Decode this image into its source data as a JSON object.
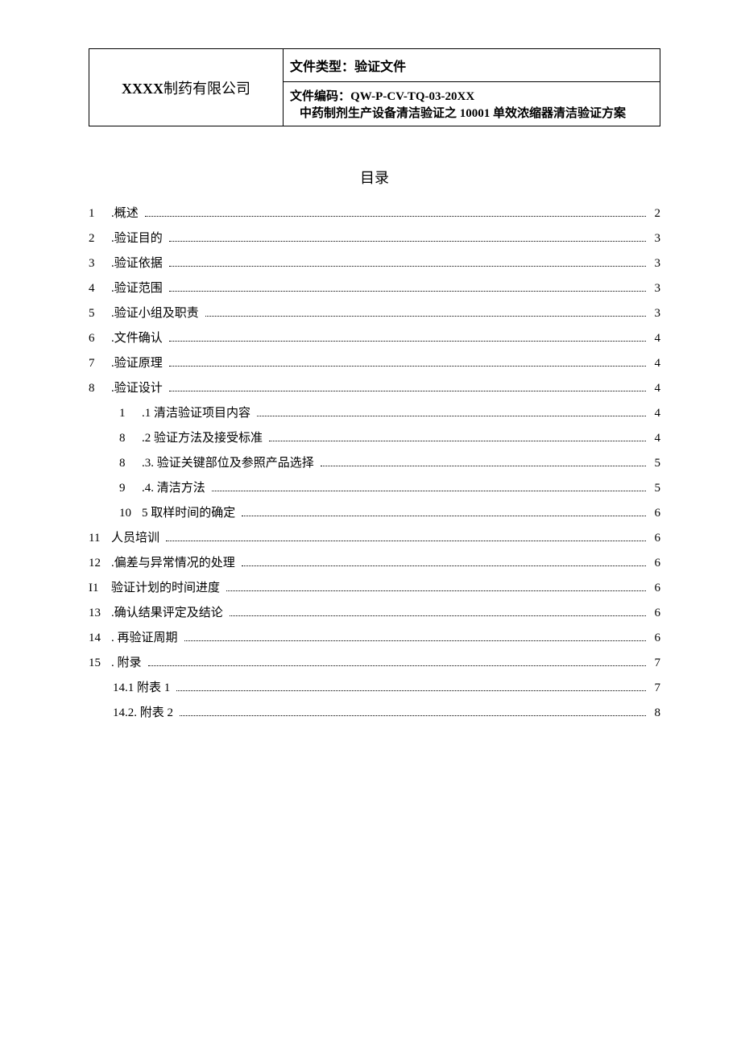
{
  "header": {
    "company_name": "XXXX",
    "company_suffix": "制药有限公司",
    "doc_type_label": "文件类型：",
    "doc_type_value": "验证文件",
    "doc_code_label": "文件编码：",
    "doc_code_value": "QW-P-CV-TQ-03-20XX",
    "doc_title": "中药制剂生产设备清洁验证之 10001 单效浓缩器清洁验证方案"
  },
  "toc_title": "目录",
  "toc": [
    {
      "num": "1",
      "label": ".概述",
      "page": "2",
      "indent": 0
    },
    {
      "num": "2",
      "label": ".验证目的",
      "page": "3",
      "indent": 0
    },
    {
      "num": "3",
      "label": ".验证依据",
      "page": "3",
      "indent": 0
    },
    {
      "num": "4",
      "label": ".验证范围",
      "page": "3",
      "indent": 0
    },
    {
      "num": "5",
      "label": ".验证小组及职责",
      "page": "3",
      "indent": 0
    },
    {
      "num": "6",
      "label": ".文件确认",
      "page": "4",
      "indent": 0
    },
    {
      "num": "7",
      "label": ".验证原理",
      "page": "4",
      "indent": 0
    },
    {
      "num": "8",
      "label": ".验证设计",
      "page": "4",
      "indent": 0
    },
    {
      "num": "1",
      "label": ".1 清洁验证项目内容",
      "page": "4",
      "indent": 1
    },
    {
      "num": "8",
      "label": ".2 验证方法及接受标准",
      "page": "4",
      "indent": 1
    },
    {
      "num": "8",
      "label": ".3. 验证关键部位及参照产品选择",
      "page": "5",
      "indent": 1
    },
    {
      "num": "9",
      "label": ".4. 清洁方法",
      "page": "5",
      "indent": 1
    },
    {
      "num": "10",
      "label": "5 取样时间的确定",
      "page": "6",
      "indent": 1
    },
    {
      "num": "11",
      "label": "人员培训",
      "page": "6",
      "indent": 0
    },
    {
      "num": "12",
      "label": ".偏差与异常情况的处理",
      "page": "6",
      "indent": 0
    },
    {
      "num": "I1",
      "label": "验证计划的时间进度",
      "page": "6",
      "indent": 0
    },
    {
      "num": "13",
      "label": ".确认结果评定及结论",
      "page": "6",
      "indent": 0
    },
    {
      "num": "14",
      "label": ". 再验证周期",
      "page": "6",
      "indent": 0
    },
    {
      "num": "15",
      "label": ". 附录",
      "page": "7",
      "indent": 0
    },
    {
      "num": "",
      "label": "14.1 附表 1",
      "page": "7",
      "indent": 2
    },
    {
      "num": "",
      "label": "14.2. 附表 2",
      "page": "8",
      "indent": 2
    }
  ]
}
